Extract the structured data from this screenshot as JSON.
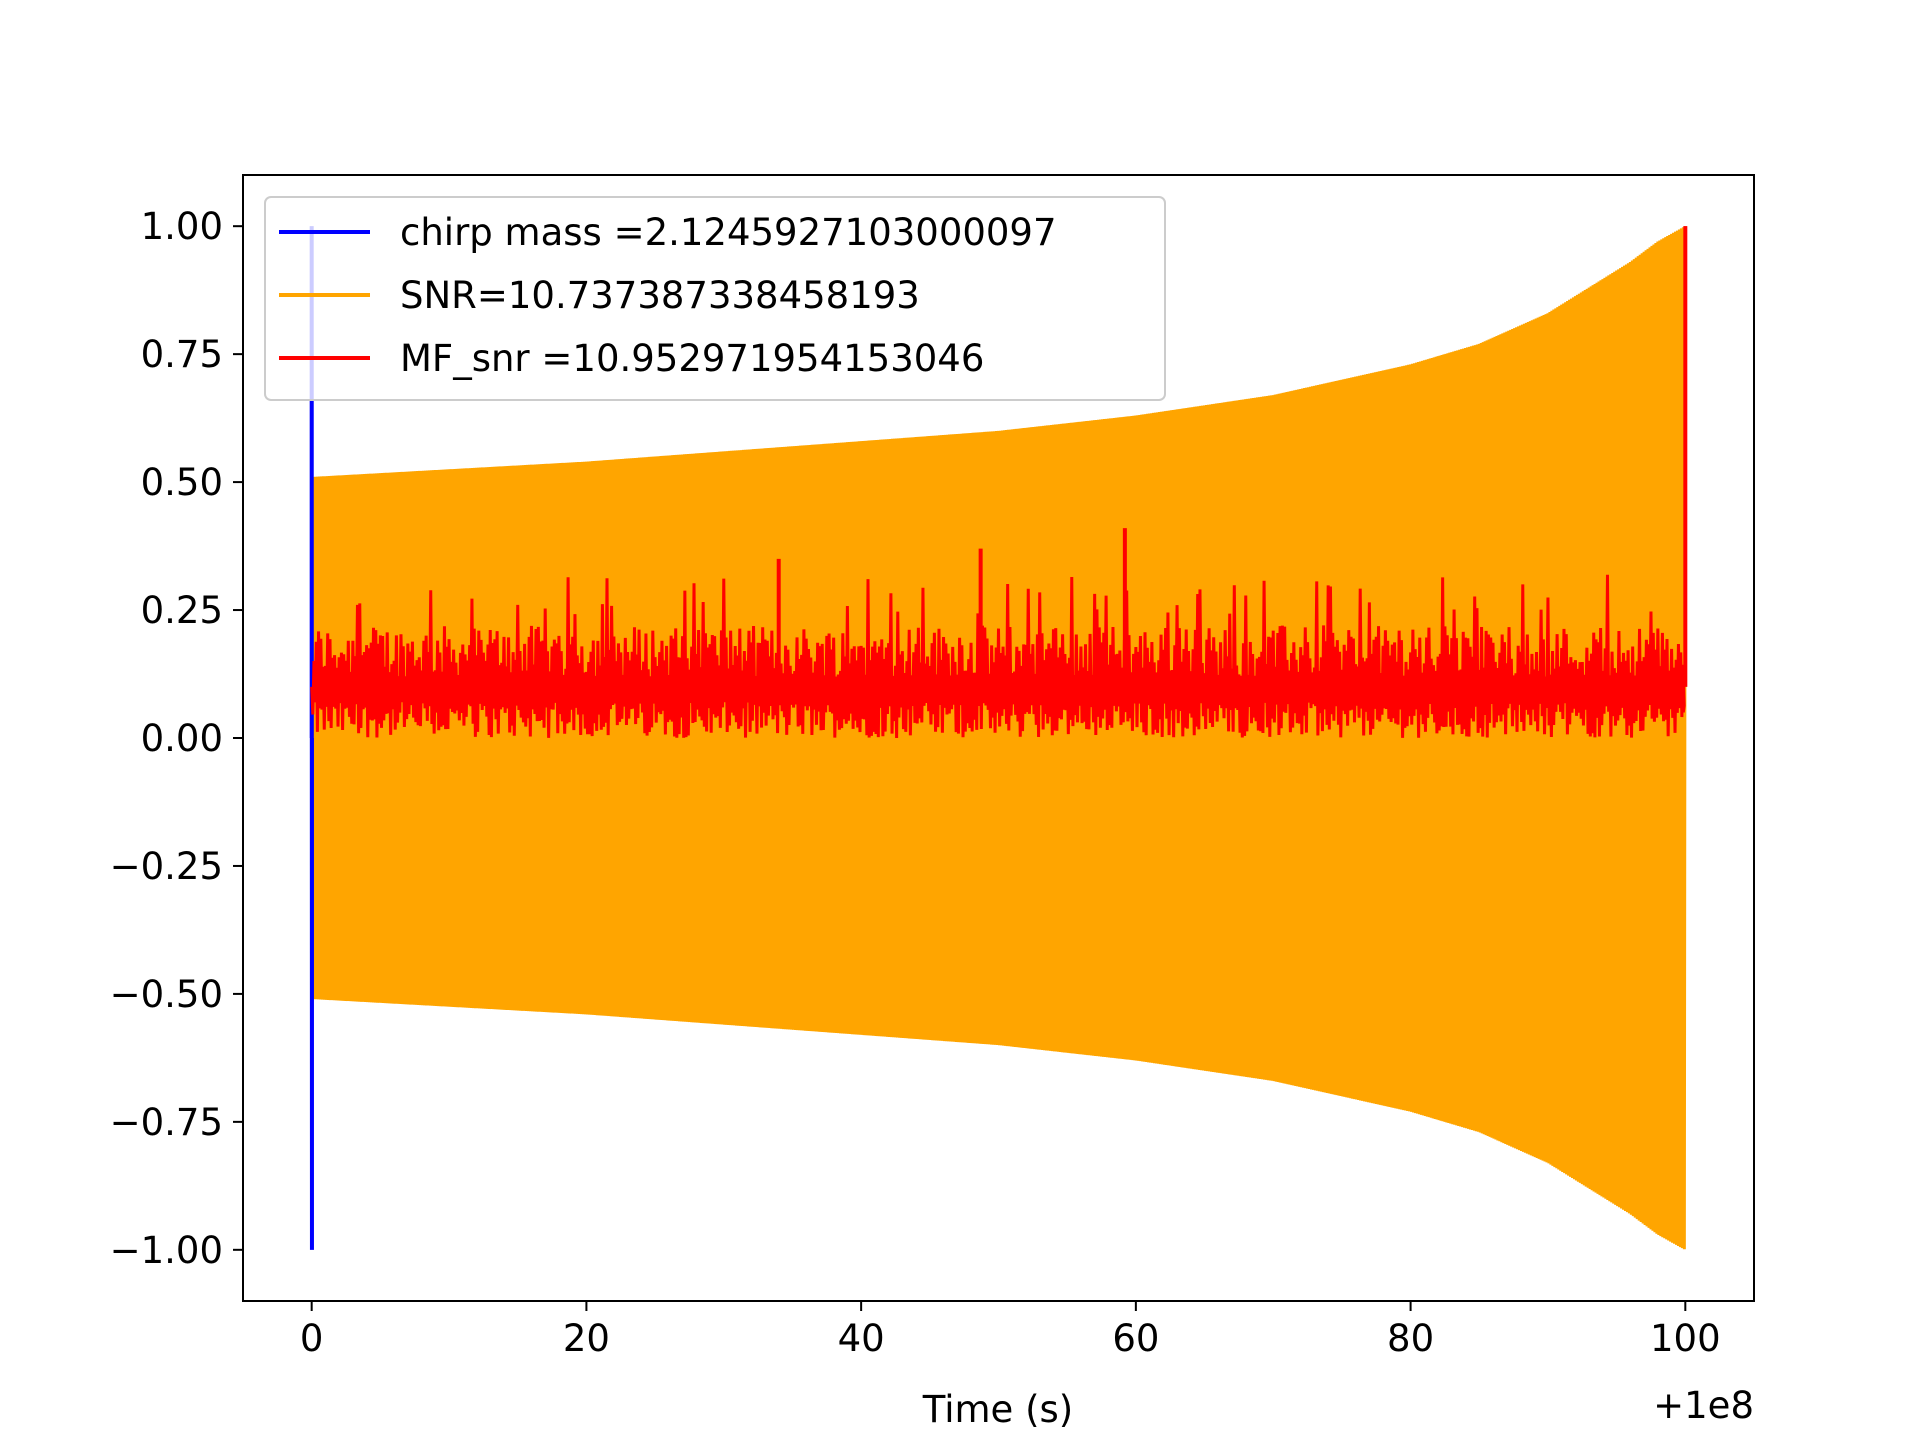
{
  "chart_data": {
    "type": "line",
    "title": "",
    "xlabel": "Time (s)",
    "ylabel": "",
    "x_offset_label": "+1e8",
    "xlim": [
      -5,
      105
    ],
    "ylim": [
      -1.1,
      1.1
    ],
    "x_ticks": [
      0,
      20,
      40,
      60,
      80,
      100
    ],
    "x_tick_labels": [
      "0",
      "20",
      "40",
      "60",
      "80",
      "100"
    ],
    "y_ticks": [
      1.0,
      0.75,
      0.5,
      0.25,
      0.0,
      -0.25,
      -0.5,
      -0.75,
      -1.0
    ],
    "y_tick_labels": [
      "1.00",
      "0.75",
      "0.50",
      "0.25",
      "0.00",
      "−0.25",
      "−0.50",
      "−0.75",
      "−1.00"
    ],
    "grid": false,
    "legend_position": "upper-left",
    "series": [
      {
        "name": "chirp mass =2.1245927103000097",
        "color": "#0000ff",
        "description_points": {
          "x": [
            0,
            0,
            0
          ],
          "y": [
            1.0,
            -1.0,
            0.0
          ]
        }
      },
      {
        "name": "SNR=10.737387338458193",
        "color": "#ffa500",
        "envelope": {
          "x": [
            0,
            10,
            20,
            30,
            40,
            50,
            60,
            70,
            80,
            85,
            90,
            93,
            96,
            98,
            99,
            100
          ],
          "upper": [
            0.51,
            0.525,
            0.54,
            0.56,
            0.58,
            0.6,
            0.63,
            0.67,
            0.73,
            0.77,
            0.83,
            0.88,
            0.93,
            0.97,
            0.985,
            1.0
          ],
          "lower": [
            -0.51,
            -0.525,
            -0.54,
            -0.56,
            -0.58,
            -0.6,
            -0.63,
            -0.67,
            -0.73,
            -0.77,
            -0.83,
            -0.88,
            -0.93,
            -0.97,
            -0.985,
            -1.0
          ]
        }
      },
      {
        "name": "MF_snr =10.952971954153046",
        "color": "#ff0000",
        "band": {
          "x_range": [
            0,
            100
          ],
          "baseline": 0.0,
          "typical_max": 0.25,
          "notable_peaks": [
            {
              "x": 59.2,
              "y": 0.41
            },
            {
              "x": 34,
              "y": 0.35
            },
            {
              "x": 48.7,
              "y": 0.37
            },
            {
              "x": 100,
              "y": 1.0
            }
          ]
        }
      }
    ]
  }
}
